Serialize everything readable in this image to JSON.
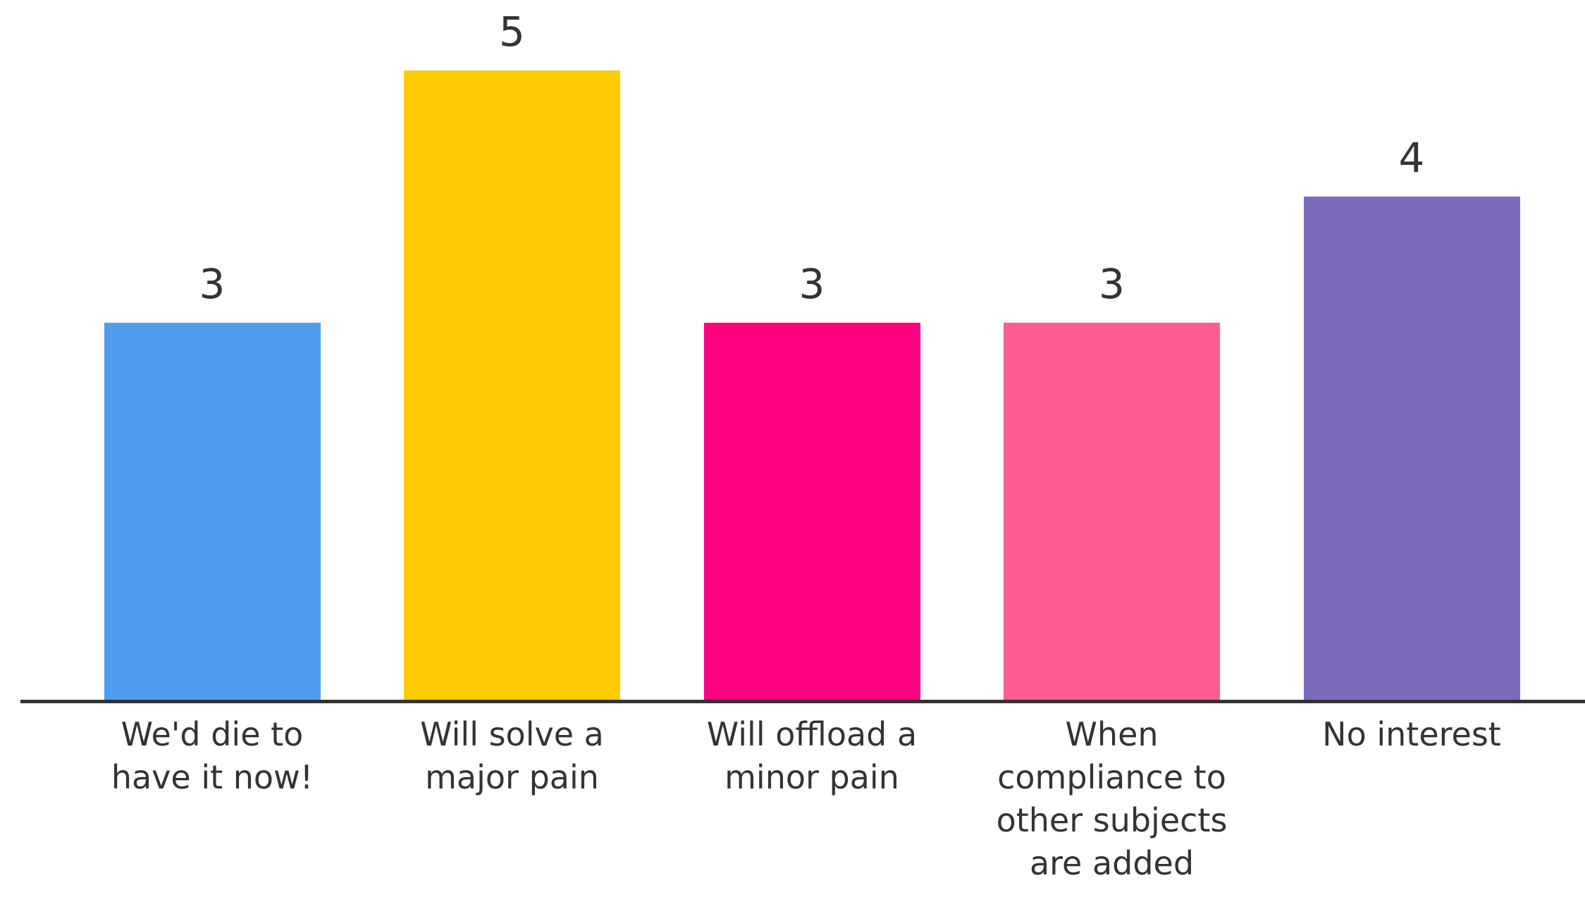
{
  "chart_data": {
    "type": "bar",
    "categories": [
      "We'd die to have it now!",
      "Will solve a major pain",
      "Will offload a minor pain",
      "When compliance to other subjects are added",
      "No interest"
    ],
    "values": [
      3,
      5,
      3,
      3,
      4
    ],
    "colors": [
      "#4f9bee",
      "#fdcb00",
      "#ff0080",
      "#fe5d93",
      "#7e6bbd"
    ]
  }
}
